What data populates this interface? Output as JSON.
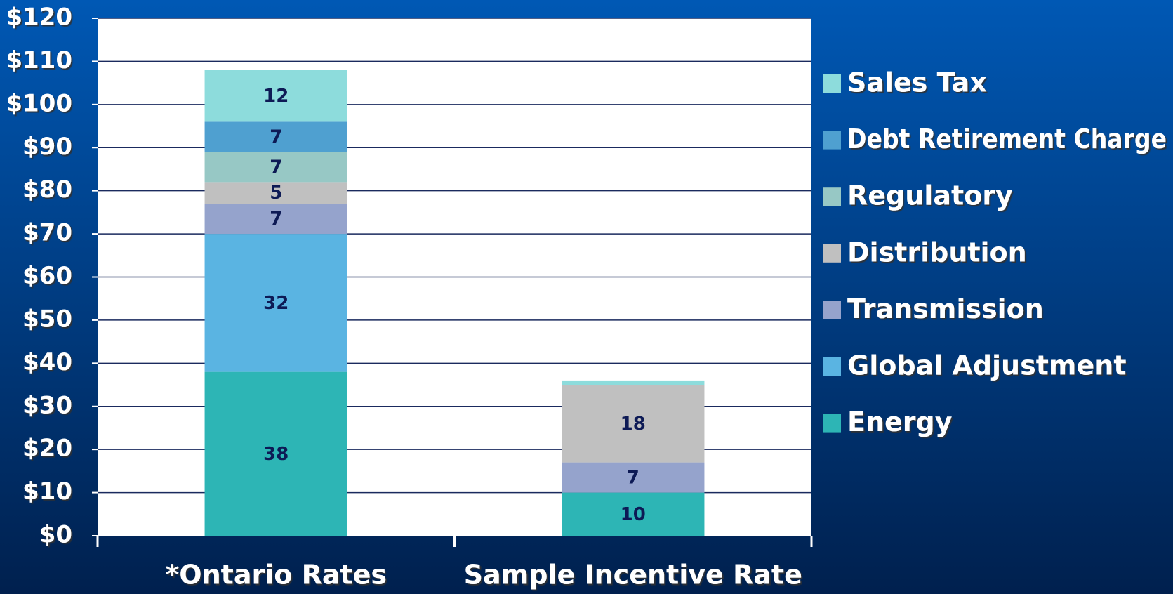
{
  "chart_data": {
    "type": "stacked_bar",
    "categories": [
      "*Ontario Rates",
      "Sample Incentive Rate"
    ],
    "series": [
      {
        "name": "Energy",
        "color": "#2db5b5",
        "values": [
          38,
          10
        ]
      },
      {
        "name": "Global Adjustment",
        "color": "#5ab4e2",
        "values": [
          32,
          0
        ]
      },
      {
        "name": "Transmission",
        "color": "#95a3cc",
        "values": [
          7,
          7
        ]
      },
      {
        "name": "Distribution",
        "color": "#c0c0c0",
        "values": [
          5,
          18
        ]
      },
      {
        "name": "Regulatory",
        "color": "#97c8c5",
        "values": [
          7,
          0
        ]
      },
      {
        "name": "Debt Retirement Charge",
        "color": "#4fa0d0",
        "values": [
          7,
          0
        ]
      },
      {
        "name": "Sales Tax",
        "color": "#8ddcdc",
        "values": [
          12,
          1
        ]
      }
    ],
    "ylim": [
      0,
      120
    ],
    "yticks": [
      {
        "value": 0,
        "label": "$0"
      },
      {
        "value": 10,
        "label": "$10"
      },
      {
        "value": 20,
        "label": "$20"
      },
      {
        "value": 30,
        "label": "$30"
      },
      {
        "value": 40,
        "label": "$40"
      },
      {
        "value": 50,
        "label": "$50"
      },
      {
        "value": 60,
        "label": "$60"
      },
      {
        "value": 70,
        "label": "$70"
      },
      {
        "value": 80,
        "label": "$80"
      },
      {
        "value": 90,
        "label": "$90"
      },
      {
        "value": 100,
        "label": "$100"
      },
      {
        "value": 110,
        "label": "$110"
      },
      {
        "value": 120,
        "label": "$120"
      }
    ],
    "grid": true,
    "legend": "right"
  }
}
